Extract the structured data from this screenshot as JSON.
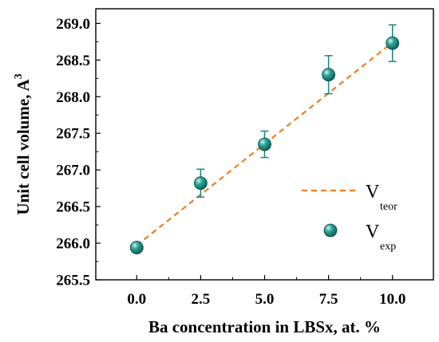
{
  "chart_data": {
    "type": "scatter",
    "xlabel": "Ba concentration in LBSx, at. %",
    "ylabel": "Unit cell volume, A",
    "ylabel_superscript": "3",
    "xlim": [
      -1.6,
      11.6
    ],
    "ylim": [
      265.5,
      269.2
    ],
    "x_ticks": [
      "0.0",
      "2.5",
      "5.0",
      "7.5",
      "10.0"
    ],
    "x_tick_values": [
      0,
      2.5,
      5,
      7.5,
      10
    ],
    "y_ticks": [
      "265.5",
      "266.0",
      "266.5",
      "267.0",
      "267.5",
      "268.0",
      "268.5",
      "269.0"
    ],
    "y_tick_values": [
      265.5,
      266.0,
      266.5,
      267.0,
      267.5,
      268.0,
      268.5,
      269.0
    ],
    "grid": false,
    "legend_position": "bottom-right",
    "series": [
      {
        "name": "V",
        "name_subscript": "teor",
        "kind": "line",
        "style": "dashed",
        "color": "#f07d1e",
        "x": [
          0,
          10
        ],
        "y": [
          265.97,
          268.74
        ]
      },
      {
        "name": "V",
        "name_subscript": "exp",
        "kind": "scatter",
        "color": "#138a80",
        "x": [
          0,
          2.5,
          5,
          7.5,
          10
        ],
        "y": [
          265.94,
          266.82,
          267.35,
          268.3,
          268.73
        ],
        "y_err": [
          0,
          0.19,
          0.18,
          0.26,
          0.25
        ]
      }
    ]
  }
}
